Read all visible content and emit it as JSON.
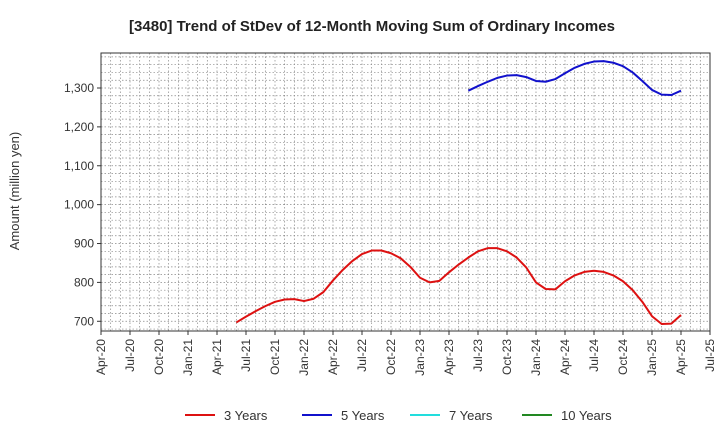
{
  "chart_data": {
    "type": "line",
    "title": "[3480]  Trend of StDev of 12-Month Moving Sum of Ordinary Incomes",
    "ylabel": "Amount (million yen)",
    "xlabel": "",
    "ylim": [
      675,
      1390
    ],
    "yticks": [
      700,
      800,
      900,
      1000,
      1100,
      1200,
      1300
    ],
    "ytick_labels": [
      "700",
      "800",
      "900",
      "1,000",
      "1,100",
      "1,200",
      "1,300"
    ],
    "xlim": [
      "2020-04",
      "2025-07"
    ],
    "xtick_labels": [
      "Apr-20",
      "Jul-20",
      "Oct-20",
      "Jan-21",
      "Apr-21",
      "Jul-21",
      "Oct-21",
      "Jan-22",
      "Apr-22",
      "Jul-22",
      "Oct-22",
      "Jan-23",
      "Apr-23",
      "Jul-23",
      "Oct-23",
      "Jan-24",
      "Apr-24",
      "Jul-24",
      "Oct-24",
      "Jan-25",
      "Apr-25",
      "Jul-25"
    ],
    "grid": true,
    "legend_position": "bottom",
    "colors": {
      "3 Years": "#dd1111",
      "5 Years": "#1111cc",
      "7 Years": "#22dddd",
      "10 Years": "#228822"
    },
    "series": [
      {
        "name": "3 Years",
        "x": [
          "2021-06",
          "2021-07",
          "2021-08",
          "2021-09",
          "2021-10",
          "2021-11",
          "2021-12",
          "2022-01",
          "2022-02",
          "2022-03",
          "2022-04",
          "2022-05",
          "2022-06",
          "2022-07",
          "2022-08",
          "2022-09",
          "2022-10",
          "2022-11",
          "2022-12",
          "2023-01",
          "2023-02",
          "2023-03",
          "2023-04",
          "2023-05",
          "2023-06",
          "2023-07",
          "2023-08",
          "2023-09",
          "2023-10",
          "2023-11",
          "2023-12",
          "2024-01",
          "2024-02",
          "2024-03",
          "2024-04",
          "2024-05",
          "2024-06",
          "2024-07",
          "2024-08",
          "2024-09",
          "2024-10",
          "2024-11",
          "2024-12",
          "2025-01",
          "2025-02",
          "2025-03",
          "2025-04"
        ],
        "values": [
          697,
          712,
          726,
          739,
          750,
          756,
          757,
          752,
          758,
          775,
          805,
          832,
          855,
          873,
          882,
          882,
          875,
          862,
          840,
          812,
          800,
          804,
          826,
          846,
          864,
          880,
          888,
          888,
          880,
          864,
          838,
          800,
          783,
          782,
          803,
          818,
          827,
          830,
          827,
          818,
          803,
          780,
          750,
          713,
          693,
          694,
          716
        ]
      },
      {
        "name": "5 Years",
        "x": [
          "2023-06",
          "2023-07",
          "2023-08",
          "2023-09",
          "2023-10",
          "2023-11",
          "2023-12",
          "2024-01",
          "2024-02",
          "2024-03",
          "2024-04",
          "2024-05",
          "2024-06",
          "2024-07",
          "2024-08",
          "2024-09",
          "2024-10",
          "2024-11",
          "2024-12",
          "2025-01",
          "2025-02",
          "2025-03",
          "2025-04"
        ],
        "values": [
          1293,
          1305,
          1316,
          1326,
          1332,
          1333,
          1328,
          1318,
          1316,
          1323,
          1338,
          1352,
          1362,
          1368,
          1369,
          1365,
          1356,
          1340,
          1318,
          1295,
          1283,
          1282,
          1293
        ]
      },
      {
        "name": "7 Years",
        "x": [],
        "values": []
      },
      {
        "name": "10 Years",
        "x": [],
        "values": []
      }
    ]
  }
}
